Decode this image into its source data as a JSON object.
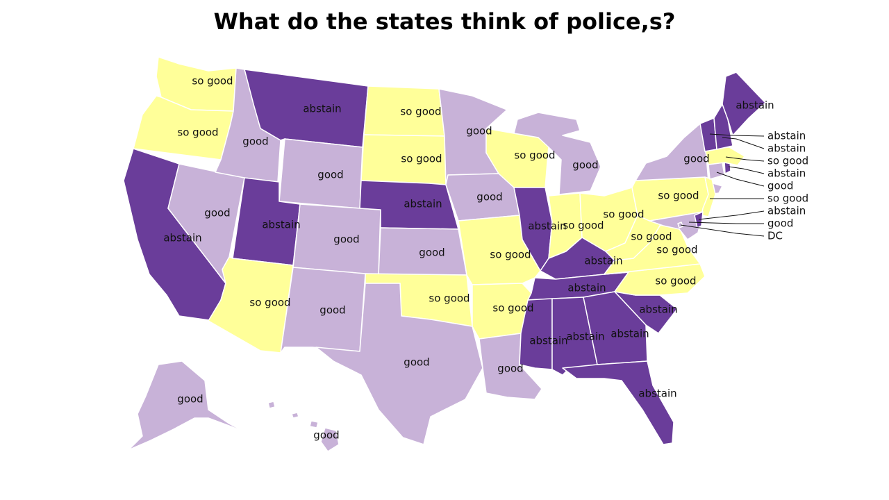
{
  "title": "What do the states think of police,s?",
  "colors": {
    "so_good": "#ffff99",
    "good": "#c8b2d8",
    "abstain": "#6a3d9a"
  },
  "states": {
    "WA": {
      "cat": "so_good",
      "label": "so good"
    },
    "OR": {
      "cat": "so_good",
      "label": "so good"
    },
    "CA": {
      "cat": "abstain",
      "label": "abstain"
    },
    "NV": {
      "cat": "good",
      "label": "good"
    },
    "ID": {
      "cat": "good",
      "label": "good"
    },
    "MT": {
      "cat": "abstain",
      "label": "abstain"
    },
    "WY": {
      "cat": "good",
      "label": "good"
    },
    "UT": {
      "cat": "abstain",
      "label": "abstain"
    },
    "AZ": {
      "cat": "so_good",
      "label": "so good"
    },
    "CO": {
      "cat": "good",
      "label": "good"
    },
    "NM": {
      "cat": "good",
      "label": "good"
    },
    "ND": {
      "cat": "so_good",
      "label": "so good"
    },
    "SD": {
      "cat": "so_good",
      "label": "so good"
    },
    "NE": {
      "cat": "abstain",
      "label": "abstain"
    },
    "KS": {
      "cat": "good",
      "label": "good"
    },
    "OK": {
      "cat": "so_good",
      "label": "so good"
    },
    "TX": {
      "cat": "good",
      "label": "good"
    },
    "MN": {
      "cat": "good",
      "label": "good"
    },
    "IA": {
      "cat": "good",
      "label": "good"
    },
    "MO": {
      "cat": "so_good",
      "label": "so good"
    },
    "AR": {
      "cat": "so_good",
      "label": "so good"
    },
    "LA": {
      "cat": "good",
      "label": "good"
    },
    "WI": {
      "cat": "so_good",
      "label": "so good"
    },
    "IL": {
      "cat": "abstain",
      "label": "abstain"
    },
    "MI": {
      "cat": "good",
      "label": "good"
    },
    "IN": {
      "cat": "so_good",
      "label": "so good"
    },
    "OH": {
      "cat": "so_good",
      "label": "so good"
    },
    "KY": {
      "cat": "abstain",
      "label": "abstain"
    },
    "TN": {
      "cat": "abstain",
      "label": "abstain"
    },
    "MS": {
      "cat": "abstain",
      "label": "abstain"
    },
    "AL": {
      "cat": "abstain",
      "label": "abstain"
    },
    "GA": {
      "cat": "abstain",
      "label": "abstain"
    },
    "FL": {
      "cat": "abstain",
      "label": "abstain"
    },
    "SC": {
      "cat": "abstain",
      "label": "abstain"
    },
    "NC": {
      "cat": "so_good",
      "label": "so good"
    },
    "VA": {
      "cat": "so_good",
      "label": "so good"
    },
    "WV": {
      "cat": "so_good",
      "label": "so good"
    },
    "PA": {
      "cat": "so_good",
      "label": "so good"
    },
    "NY": {
      "cat": "good",
      "label": "good"
    },
    "ME": {
      "cat": "abstain",
      "label": "abstain"
    },
    "AK": {
      "cat": "good",
      "label": "good"
    },
    "HI": {
      "cat": "good",
      "label": "good"
    },
    "VT": {
      "cat": "abstain",
      "label": "abstain"
    },
    "NH": {
      "cat": "abstain",
      "label": "abstain"
    },
    "MA": {
      "cat": "so_good",
      "label": "so good"
    },
    "RI": {
      "cat": "abstain",
      "label": "abstain"
    },
    "CT": {
      "cat": "good",
      "label": "good"
    },
    "NJ": {
      "cat": "so_good",
      "label": "so good"
    },
    "DE": {
      "cat": "abstain",
      "label": "abstain"
    },
    "MD": {
      "cat": "good",
      "label": "good"
    },
    "DC": {
      "cat": "good",
      "label": "DC"
    }
  }
}
